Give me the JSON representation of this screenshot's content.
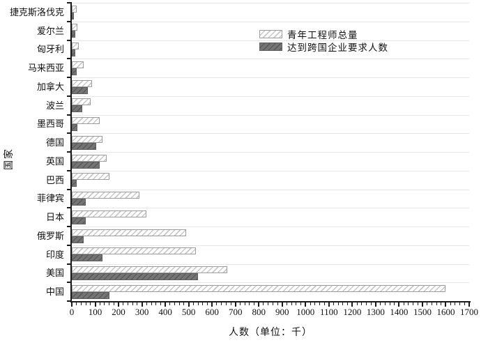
{
  "chart_data": {
    "type": "bar",
    "orientation": "horizontal",
    "title": "",
    "xlabel": "人数（单位：千）",
    "ylabel": "国家",
    "xlim": [
      0,
      1700
    ],
    "x_tick_step": 100,
    "x_minor_tick_step": 20,
    "grid": "horizontal-light",
    "legend_position": "inside-top-center",
    "categories": [
      "捷克斯洛伐克",
      "爱尔兰",
      "匈牙利",
      "马来西亚",
      "加拿大",
      "波兰",
      "墨西哥",
      "德国",
      "英国",
      "巴西",
      "菲律宾",
      "日本",
      "俄罗斯",
      "印度",
      "美国",
      "中国"
    ],
    "series": [
      {
        "name": "青年工程师总量",
        "style": "white-diagonal-hatch",
        "values": [
          20,
          25,
          30,
          50,
          85,
          80,
          120,
          130,
          150,
          160,
          290,
          320,
          490,
          530,
          665,
          1600
        ]
      },
      {
        "name": "达到跨国企业要求人数",
        "style": "dark-gray-diagonal-hatch",
        "values": [
          10,
          15,
          15,
          20,
          70,
          45,
          25,
          105,
          120,
          20,
          60,
          60,
          50,
          130,
          540,
          160
        ]
      }
    ],
    "x_tick_labels": [
      "0",
      "100",
      "200",
      "300",
      "400",
      "500",
      "600",
      "700",
      "800",
      "900",
      "1000",
      "1100",
      "1200",
      "1300",
      "1400",
      "1500",
      "1600",
      "1700"
    ]
  },
  "colors": {
    "total_bar_fill": "#ffffff",
    "total_bar_hatch": "#c7c7c7",
    "total_bar_border": "#9c9c9c",
    "qualified_bar_fill": "#757575",
    "qualified_bar_hatch": "#5a5a5a",
    "qualified_bar_border": "#5e5e5e",
    "axis": "#1a1a1a",
    "gridline": "#e6e6e6",
    "text": "#111111"
  }
}
